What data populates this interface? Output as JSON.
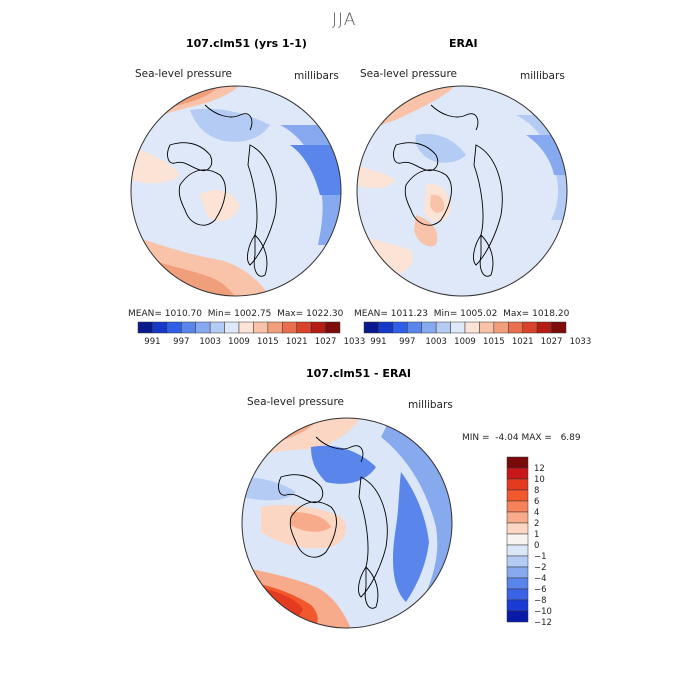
{
  "page": {
    "title": "JJA"
  },
  "panels": [
    {
      "title": "107.clm51 (yrs 1-1)",
      "variable": "Sea-level pressure",
      "units": "millibars",
      "stats": {
        "mean_label": "MEAN=",
        "mean": "1010.70",
        "min_label": "Min=",
        "min": "1002.75",
        "max_label": "Max=",
        "max": "1022.30"
      }
    },
    {
      "title": "ERAI",
      "variable": "Sea-level pressure",
      "units": "millibars",
      "stats": {
        "mean_label": "MEAN=",
        "mean": "1011.23",
        "min_label": "Min=",
        "min": "1005.02",
        "max_label": "Max=",
        "max": "1018.20"
      }
    },
    {
      "title": "107.clm51 - ERAI",
      "variable": "Sea-level pressure",
      "units": "millibars",
      "stats": {
        "min_label": "MIN =",
        "min": "-4.04",
        "max_label": "MAX =",
        "max": "6.89"
      }
    }
  ],
  "colors": {
    "abs_scale": [
      "#0a1a8c",
      "#1538c8",
      "#2f5fe6",
      "#5a86ec",
      "#87a9ef",
      "#b4ccf4",
      "#dfe8f8",
      "#fbe3d6",
      "#f8c3a8",
      "#f19f7b",
      "#e86e4e",
      "#d8432a",
      "#b51d14",
      "#7d0d0d"
    ],
    "diff_scale": [
      "#7a0a0a",
      "#c8171a",
      "#e33a20",
      "#f1582d",
      "#f5825a",
      "#f8ab8a",
      "#fbd6c3",
      "#f7f3f0",
      "#dbe6f8",
      "#b4ccf3",
      "#87a9ee",
      "#5a86eb",
      "#3a63e6",
      "#1a3cd6",
      "#0a1aa8"
    ],
    "coast": "#000000",
    "border": "#333333"
  },
  "chart_data": [
    {
      "type": "heatmap",
      "title": "107.clm51 (yrs 1-1)",
      "subtitle": "Sea-level pressure",
      "units": "millibars",
      "projection": "north polar stereographic",
      "mean": 1010.7,
      "min": 1002.75,
      "max": 1022.3,
      "colorbar": {
        "orientation": "horizontal",
        "tick_labels": [
          "991",
          "997",
          "1003",
          "1009",
          "1015",
          "1021",
          "1027",
          "1033"
        ]
      }
    },
    {
      "type": "heatmap",
      "title": "ERAI",
      "subtitle": "Sea-level pressure",
      "units": "millibars",
      "projection": "north polar stereographic",
      "mean": 1011.23,
      "min": 1005.02,
      "max": 1018.2,
      "colorbar": {
        "orientation": "horizontal",
        "tick_labels": [
          "991",
          "997",
          "1003",
          "1009",
          "1015",
          "1021",
          "1027",
          "1033"
        ]
      }
    },
    {
      "type": "heatmap",
      "title": "107.clm51 - ERAI",
      "subtitle": "Sea-level pressure",
      "units": "millibars",
      "projection": "north polar stereographic",
      "min": -4.04,
      "max": 6.89,
      "colorbar": {
        "orientation": "vertical",
        "tick_labels": [
          "12",
          "10",
          "8",
          "6",
          "4",
          "2",
          "1",
          "0",
          "−1",
          "−2",
          "−4",
          "−6",
          "−8",
          "−10",
          "−12"
        ]
      }
    }
  ]
}
